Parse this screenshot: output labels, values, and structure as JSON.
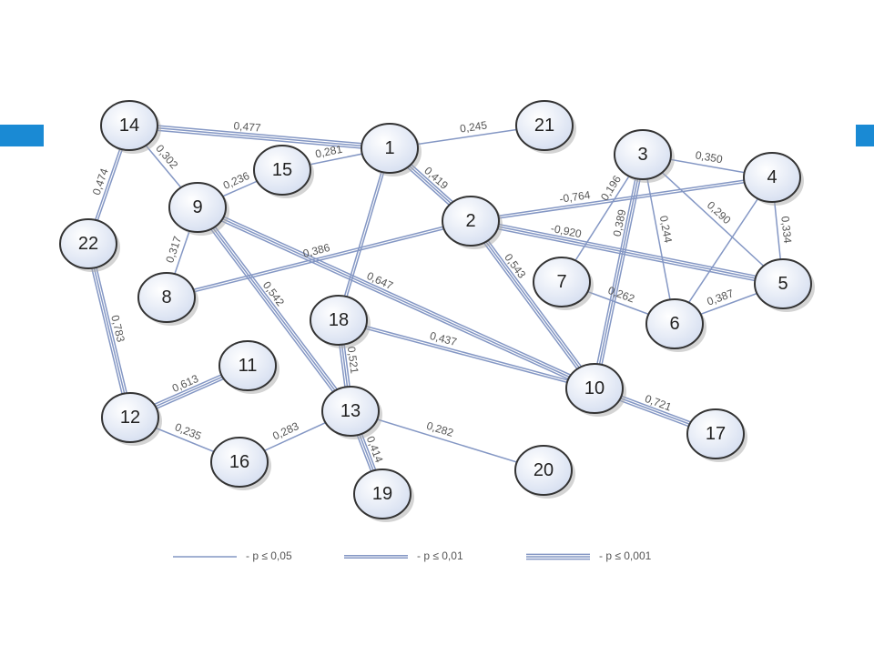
{
  "nodes": [
    {
      "label": "14"
    },
    {
      "label": "1"
    },
    {
      "label": "21"
    },
    {
      "label": "15"
    },
    {
      "label": "9"
    },
    {
      "label": "22"
    },
    {
      "label": "2"
    },
    {
      "label": "3"
    },
    {
      "label": "4"
    },
    {
      "label": "7"
    },
    {
      "label": "5"
    },
    {
      "label": "6"
    },
    {
      "label": "8"
    },
    {
      "label": "18"
    },
    {
      "label": "10"
    },
    {
      "label": "17"
    },
    {
      "label": "11"
    },
    {
      "label": "12"
    },
    {
      "label": "13"
    },
    {
      "label": "16"
    },
    {
      "label": "20"
    },
    {
      "label": "19"
    }
  ],
  "edges": [
    {
      "label": "0,477"
    },
    {
      "label": "0,245"
    },
    {
      "label": "0,302"
    },
    {
      "label": "0,474"
    },
    {
      "label": "0,281"
    },
    {
      "label": "0,236"
    },
    {
      "label": "0,419"
    },
    {
      "label": "0,317"
    },
    {
      "label": "0,647"
    },
    {
      "label": "0,542"
    },
    {
      "label": "-0,764"
    },
    {
      "label": "-0,920"
    },
    {
      "label": "0,386"
    },
    {
      "label": "0,543"
    },
    {
      "label": "0,350"
    },
    {
      "label": "0,196"
    },
    {
      "label": "0,389"
    },
    {
      "label": "0,244"
    },
    {
      "label": "0,290"
    },
    {
      "label": "0,334"
    },
    {
      "label": "0,262"
    },
    {
      "label": "0,387"
    },
    {
      "label": "0,437"
    },
    {
      "label": "0,521"
    },
    {
      "label": "0,783"
    },
    {
      "label": "0,613"
    },
    {
      "label": "0,235"
    },
    {
      "label": "0,283"
    },
    {
      "label": "0,282"
    },
    {
      "label": "0,414"
    },
    {
      "label": "0,721"
    }
  ],
  "legend": [
    {
      "label": "- p ≤ 0,05"
    },
    {
      "label": "- p ≤ 0,01"
    },
    {
      "label": "- p ≤ 0,001"
    }
  ]
}
